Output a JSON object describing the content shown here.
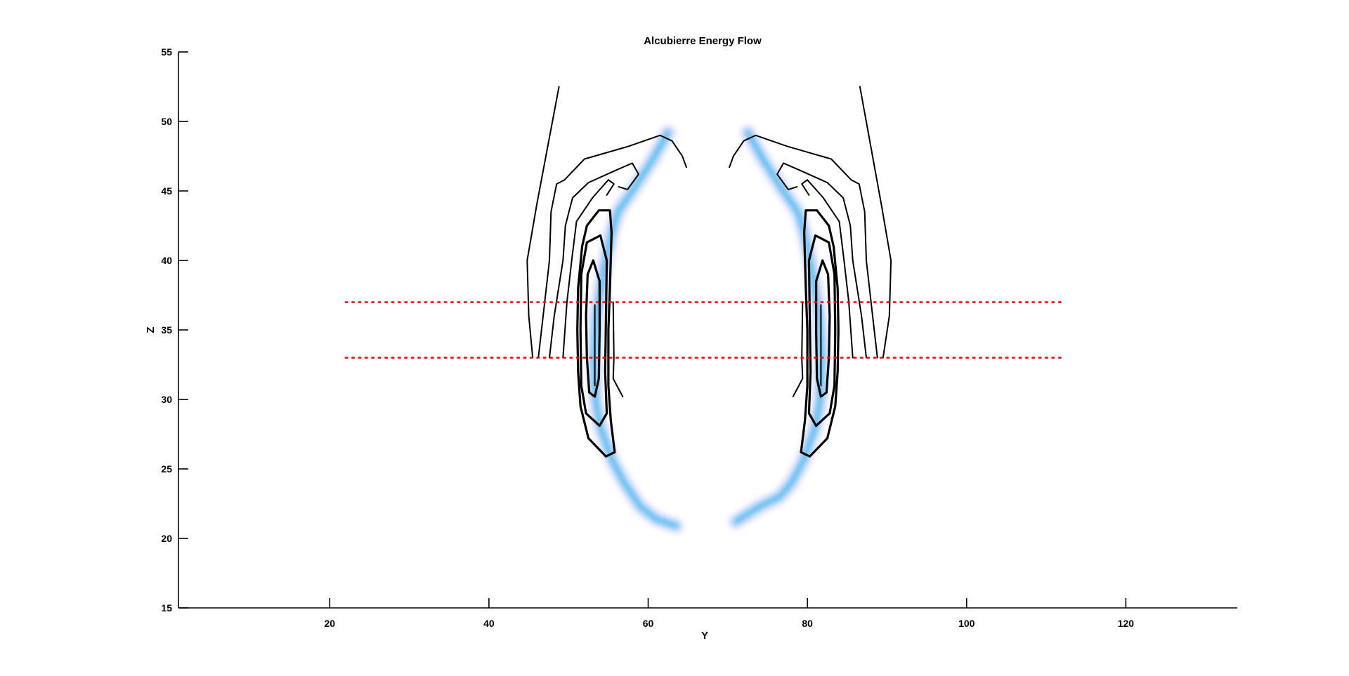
{
  "chart_data": {
    "type": "contour",
    "title": "Alcubierre Energy Flow",
    "xlabel": "Y",
    "ylabel": "Z",
    "xlim": [
      1,
      134
    ],
    "ylim": [
      15,
      55
    ],
    "xticks": [
      20,
      40,
      60,
      80,
      100,
      120
    ],
    "yticks": [
      15,
      20,
      25,
      30,
      35,
      40,
      45,
      50,
      55
    ],
    "colors": {
      "contour": "#000000",
      "guide": "#ff0000",
      "glow": "#2ab4e8",
      "halo": "#9aa6ff"
    },
    "guide_lines": [
      {
        "name": "upper-bound",
        "y": 37,
        "x": [
          22,
          112
        ]
      },
      {
        "name": "lower-bound",
        "y": 33,
        "x": [
          22,
          112
        ]
      }
    ],
    "contours": [
      {
        "name": "outer-left",
        "points": [
          [
            45.5,
            33
          ],
          [
            45,
            36
          ],
          [
            44.8,
            40
          ],
          [
            46,
            44
          ],
          [
            48.8,
            52.5
          ]
        ]
      },
      {
        "name": "outer-right",
        "points": [
          [
            89.5,
            33
          ],
          [
            90.3,
            36
          ],
          [
            90.5,
            40
          ],
          [
            89.3,
            44
          ],
          [
            86.6,
            52.5
          ]
        ]
      },
      {
        "name": "mid2-left",
        "points": [
          [
            46.2,
            33
          ],
          [
            46.8,
            36
          ],
          [
            47.6,
            40
          ],
          [
            47.8,
            43.5
          ],
          [
            48.5,
            45.5
          ],
          [
            49.5,
            45.8
          ],
          [
            52,
            47.3
          ],
          [
            57.5,
            48.2
          ],
          [
            59.5,
            48.6
          ],
          [
            61.5,
            49
          ],
          [
            63,
            48.6
          ],
          [
            64.3,
            47.5
          ],
          [
            64.8,
            46.7
          ]
        ]
      },
      {
        "name": "mid2-right",
        "points": [
          [
            88.8,
            33
          ],
          [
            88.2,
            36
          ],
          [
            87.4,
            40
          ],
          [
            87.2,
            43.5
          ],
          [
            86.5,
            45.5
          ],
          [
            85.5,
            45.8
          ],
          [
            83,
            47.3
          ],
          [
            77.5,
            48.2
          ],
          [
            75.5,
            48.6
          ],
          [
            73.5,
            49
          ],
          [
            72,
            48.6
          ],
          [
            70.7,
            47.5
          ],
          [
            70.2,
            46.7
          ]
        ]
      },
      {
        "name": "mid-left",
        "points": [
          [
            47.6,
            33
          ],
          [
            48.2,
            36
          ],
          [
            49.3,
            40
          ],
          [
            49.6,
            42.5
          ],
          [
            50.5,
            44.5
          ],
          [
            52.5,
            45.6
          ],
          [
            56,
            46.5
          ],
          [
            58,
            47
          ],
          [
            58.8,
            46.2
          ],
          [
            57.4,
            45.1
          ],
          [
            56.3,
            45.3
          ]
        ]
      },
      {
        "name": "mid-right",
        "points": [
          [
            87.4,
            33
          ],
          [
            86.8,
            36
          ],
          [
            85.7,
            40
          ],
          [
            85.4,
            42.5
          ],
          [
            84.5,
            44.5
          ],
          [
            82.5,
            45.6
          ],
          [
            79,
            46.5
          ],
          [
            77,
            47
          ],
          [
            76.2,
            46.2
          ],
          [
            77.6,
            45.1
          ],
          [
            78.7,
            45.3
          ]
        ]
      },
      {
        "name": "inner-left",
        "points": [
          [
            49.3,
            33
          ],
          [
            49.8,
            37
          ],
          [
            50.4,
            40
          ],
          [
            51,
            42.8
          ],
          [
            53,
            44.5
          ],
          [
            55,
            45.8
          ],
          [
            55.7,
            45.5
          ],
          [
            54.8,
            44.7
          ]
        ]
      },
      {
        "name": "inner-right",
        "points": [
          [
            85.7,
            33
          ],
          [
            85.2,
            37
          ],
          [
            84.6,
            40
          ],
          [
            84,
            42.8
          ],
          [
            82,
            44.5
          ],
          [
            80,
            45.8
          ],
          [
            79.3,
            45.5
          ],
          [
            80.2,
            44.7
          ]
        ]
      },
      {
        "name": "ring1-left",
        "points": [
          [
            52.5,
            27.2
          ],
          [
            51.5,
            29.5
          ],
          [
            51.2,
            32
          ],
          [
            51.1,
            35
          ],
          [
            51.2,
            38
          ],
          [
            51.7,
            41
          ],
          [
            52.3,
            42.5
          ],
          [
            53.8,
            43.6
          ],
          [
            55.2,
            43.6
          ],
          [
            55.4,
            42
          ],
          [
            55.2,
            38
          ],
          [
            55,
            35
          ],
          [
            55,
            31
          ],
          [
            55.3,
            28.5
          ],
          [
            55.8,
            26.2
          ],
          [
            54.7,
            25.9
          ],
          [
            52.5,
            27.2
          ]
        ]
      },
      {
        "name": "ring1-right",
        "points": [
          [
            82.5,
            27.2
          ],
          [
            83.5,
            29.5
          ],
          [
            83.8,
            32
          ],
          [
            83.9,
            35
          ],
          [
            83.8,
            38
          ],
          [
            83.3,
            41
          ],
          [
            82.7,
            42.5
          ],
          [
            81.2,
            43.6
          ],
          [
            79.8,
            43.6
          ],
          [
            79.6,
            42
          ],
          [
            79.8,
            38
          ],
          [
            80,
            35
          ],
          [
            80,
            31
          ],
          [
            79.7,
            28.5
          ],
          [
            79.2,
            26.2
          ],
          [
            80.3,
            25.9
          ],
          [
            82.5,
            27.2
          ]
        ]
      },
      {
        "name": "ring2-left",
        "points": [
          [
            52.2,
            29
          ],
          [
            51.6,
            31
          ],
          [
            51.5,
            35
          ],
          [
            51.6,
            39
          ],
          [
            52.3,
            41.3
          ],
          [
            54,
            41.8
          ],
          [
            54.8,
            40
          ],
          [
            54.7,
            36
          ],
          [
            54.6,
            32
          ],
          [
            54.8,
            29
          ],
          [
            53.9,
            28.1
          ],
          [
            52.2,
            29
          ]
        ]
      },
      {
        "name": "ring2-right",
        "points": [
          [
            82.8,
            29
          ],
          [
            83.4,
            31
          ],
          [
            83.5,
            35
          ],
          [
            83.4,
            39
          ],
          [
            82.7,
            41.3
          ],
          [
            81,
            41.8
          ],
          [
            80.2,
            40
          ],
          [
            80.3,
            36
          ],
          [
            80.4,
            32
          ],
          [
            80.2,
            29
          ],
          [
            81.1,
            28.1
          ],
          [
            82.8,
            29
          ]
        ]
      },
      {
        "name": "core-left",
        "points": [
          [
            52.6,
            30.5
          ],
          [
            52.3,
            33
          ],
          [
            52.2,
            36
          ],
          [
            52.4,
            39
          ],
          [
            53.1,
            40
          ],
          [
            53.9,
            38.5
          ],
          [
            53.9,
            35
          ],
          [
            53.8,
            31.5
          ],
          [
            53.3,
            30.2
          ],
          [
            52.6,
            30.5
          ]
        ]
      },
      {
        "name": "core-right",
        "points": [
          [
            82.4,
            30.5
          ],
          [
            82.7,
            33
          ],
          [
            82.8,
            36
          ],
          [
            82.6,
            39
          ],
          [
            81.9,
            40
          ],
          [
            81.1,
            38.5
          ],
          [
            81.1,
            35
          ],
          [
            81.2,
            31.5
          ],
          [
            81.7,
            30.2
          ],
          [
            82.4,
            30.5
          ]
        ]
      },
      {
        "name": "stem-left",
        "points": [
          [
            55.6,
            37
          ],
          [
            55.7,
            33
          ],
          [
            55.6,
            31.5
          ],
          [
            56.8,
            30.2
          ]
        ]
      },
      {
        "name": "stem-right",
        "points": [
          [
            79.4,
            37
          ],
          [
            79.3,
            33
          ],
          [
            79.4,
            31.5
          ],
          [
            78.2,
            30.2
          ]
        ]
      },
      {
        "name": "cap-left",
        "points": [
          [
            53.3,
            36.8
          ],
          [
            53.3,
            31
          ]
        ]
      },
      {
        "name": "cap-right",
        "points": [
          [
            81.7,
            36.8
          ],
          [
            81.7,
            31
          ]
        ]
      }
    ],
    "glow_blobs": [
      {
        "name": "left-arc",
        "points": [
          [
            62.5,
            49.2
          ],
          [
            60.5,
            47.2
          ],
          [
            58,
            45
          ],
          [
            56.2,
            43.5
          ],
          [
            55.4,
            42
          ],
          [
            54.5,
            39.5
          ],
          [
            53.5,
            36
          ],
          [
            53.2,
            33
          ],
          [
            53.4,
            30
          ],
          [
            54,
            28
          ],
          [
            55.5,
            25.6
          ],
          [
            57,
            24
          ],
          [
            59,
            22.3
          ],
          [
            61,
            21.4
          ],
          [
            63.5,
            20.9
          ]
        ]
      },
      {
        "name": "right-arc",
        "points": [
          [
            72.5,
            49.2
          ],
          [
            74.5,
            47.2
          ],
          [
            77,
            45
          ],
          [
            78.8,
            43.5
          ],
          [
            79.6,
            42
          ],
          [
            80.5,
            39.5
          ],
          [
            81.5,
            36
          ],
          [
            81.8,
            33
          ],
          [
            81.6,
            30
          ],
          [
            81,
            28
          ],
          [
            79.5,
            25.6
          ],
          [
            78,
            24
          ],
          [
            76.5,
            23
          ],
          [
            74,
            22.3
          ],
          [
            71,
            21.2
          ]
        ]
      }
    ]
  }
}
